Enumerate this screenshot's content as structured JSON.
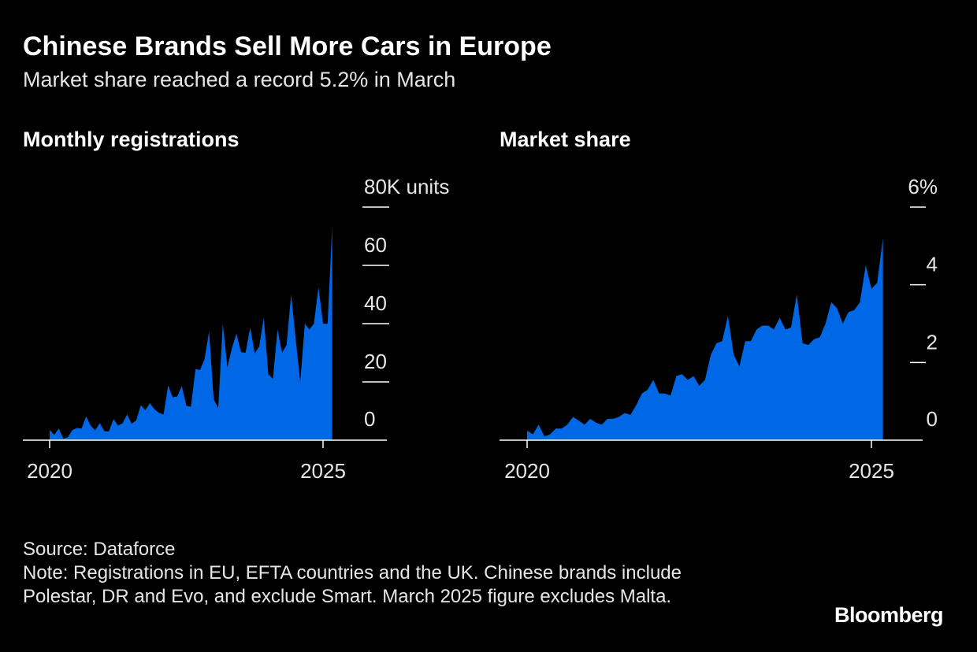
{
  "title": "Chinese Brands Sell More Cars in Europe",
  "subtitle": "Market share reached a record 5.2% in March",
  "colors": {
    "fill": "#0068e6",
    "axis": "#ffffff",
    "background": "#000000"
  },
  "chart_data": [
    {
      "type": "area",
      "title": "Monthly registrations",
      "x_start": "2020-01",
      "x_end": "2025-03",
      "x_ticks": [
        "2020",
        "2025"
      ],
      "y_ticks": [
        0,
        20,
        40,
        60,
        "80K units"
      ],
      "ylim": [
        0,
        80000
      ],
      "values": [
        3500,
        1800,
        4000,
        500,
        1000,
        3500,
        4200,
        4000,
        8200,
        5000,
        3400,
        5800,
        3100,
        3000,
        7200,
        5000,
        5800,
        8800,
        5600,
        6800,
        12000,
        10300,
        12700,
        10600,
        9400,
        8800,
        18800,
        14700,
        15000,
        18600,
        11800,
        11500,
        24400,
        24100,
        27800,
        37300,
        14000,
        11000,
        40000,
        25000,
        31600,
        36600,
        30200,
        30000,
        38700,
        29800,
        32200,
        42000,
        22600,
        21000,
        38000,
        30000,
        32700,
        50000,
        34600,
        20000,
        40000,
        38000,
        40000,
        52500,
        40000,
        40000,
        73500
      ]
    },
    {
      "type": "area",
      "title": "Market share",
      "x_start": "2020-01",
      "x_end": "2025-03",
      "x_ticks": [
        "2020",
        "2025"
      ],
      "y_ticks": [
        0,
        2,
        4,
        "6%"
      ],
      "ylim": [
        0,
        6
      ],
      "values": [
        0.25,
        0.15,
        0.4,
        0.1,
        0.15,
        0.3,
        0.3,
        0.4,
        0.6,
        0.5,
        0.4,
        0.55,
        0.45,
        0.4,
        0.55,
        0.55,
        0.6,
        0.7,
        0.65,
        0.9,
        1.2,
        1.3,
        1.55,
        1.2,
        1.2,
        1.15,
        1.65,
        1.7,
        1.55,
        1.65,
        1.4,
        1.55,
        2.2,
        2.5,
        2.55,
        3.2,
        2.2,
        1.9,
        2.55,
        2.55,
        2.85,
        2.95,
        2.95,
        2.85,
        3.15,
        2.85,
        2.9,
        3.75,
        2.5,
        2.45,
        2.6,
        2.65,
        3.0,
        3.55,
        3.4,
        3.0,
        3.3,
        3.35,
        3.55,
        4.5,
        3.9,
        4.05,
        5.2
      ]
    }
  ],
  "source": "Source: Dataforce",
  "note": "Note: Registrations in EU, EFTA countries and the UK. Chinese brands include Polestar, DR and Evo, and exclude Smart. March 2025 figure excludes Malta.",
  "logo": "Bloomberg"
}
